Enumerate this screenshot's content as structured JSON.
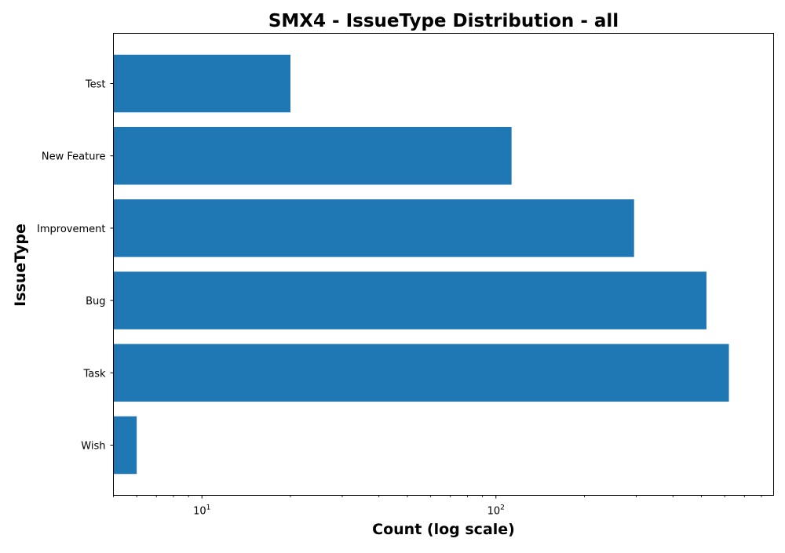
{
  "chart_data": {
    "type": "bar",
    "orientation": "horizontal",
    "title": "SMX4 - IssueType Distribution - all",
    "xlabel": "Count (log scale)",
    "ylabel": "IssueType",
    "x_scale": "log",
    "xlim": [
      5,
      880
    ],
    "categories": [
      "Wish",
      "Task",
      "Bug",
      "Improvement",
      "New Feature",
      "Test"
    ],
    "values": [
      6,
      620,
      520,
      295,
      113,
      20
    ],
    "bar_color": "#1f77b4",
    "grid": false,
    "x_ticks": [
      {
        "value": 10,
        "base": "10",
        "exponent": "1"
      },
      {
        "value": 100,
        "base": "10",
        "exponent": "2"
      }
    ]
  }
}
